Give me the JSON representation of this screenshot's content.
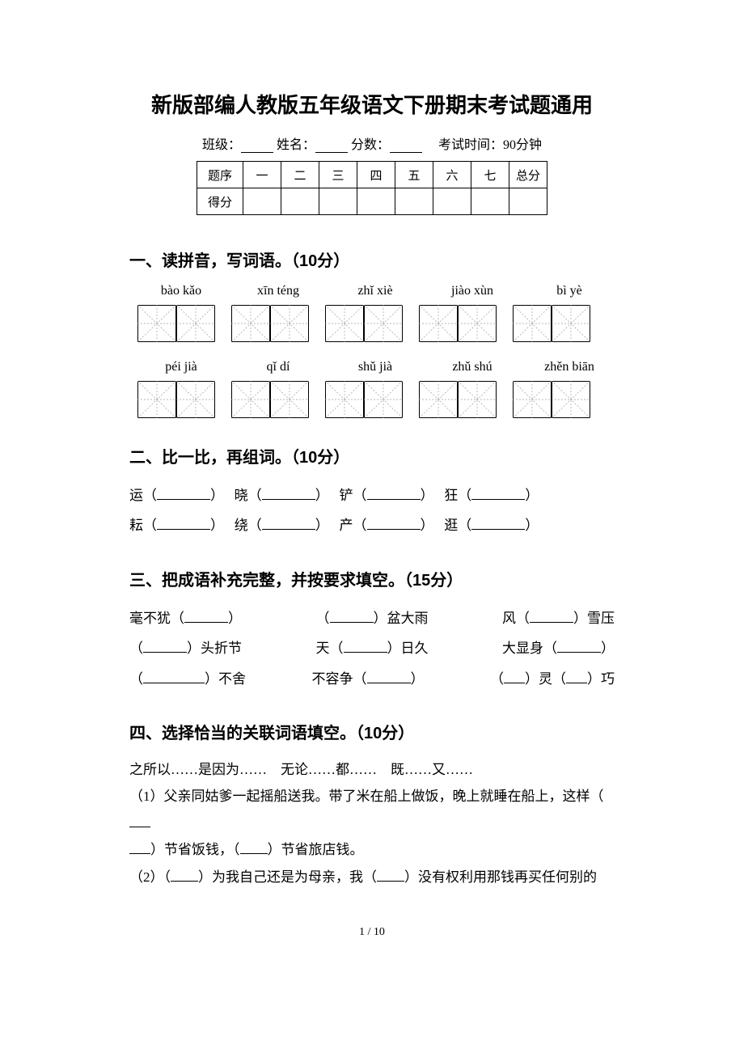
{
  "title": "新版部编人教版五年级语文下册期末考试题通用",
  "meta": {
    "class_label": "班级：",
    "name_label": "姓名：",
    "score_label": "分数：",
    "time_label": "考试时间：90分钟"
  },
  "score_table": {
    "row1": [
      "题序",
      "一",
      "二",
      "三",
      "四",
      "五",
      "六",
      "七",
      "总分"
    ],
    "row2_label": "得分"
  },
  "section1": {
    "heading": "一、读拼音，写词语。（10分）",
    "pinyin1": [
      "bào kǎo",
      "xīn téng",
      "zhǐ xiè",
      "jiào xùn",
      "bì yè"
    ],
    "pinyin2": [
      "péi jià",
      "qǐ dí",
      "shǔ jià",
      "zhǔ shú",
      "zhěn biān"
    ]
  },
  "section2": {
    "heading": "二、比一比，再组词。（10分）",
    "pairs_row1": [
      [
        "运",
        "晓",
        "铲",
        "狂"
      ]
    ],
    "pairs_row2": [
      [
        "耘",
        "绕",
        "产",
        "逛"
      ]
    ]
  },
  "section3": {
    "heading": "三、把成语补充完整，并按要求填空。（15分）",
    "rows": [
      [
        {
          "pre": "毫不犹（",
          "post": "）"
        },
        {
          "pre": "（",
          "post": "）盆大雨"
        },
        {
          "pre": "风（",
          "post": "）雪压"
        }
      ],
      [
        {
          "pre": "（",
          "post": "）头折节"
        },
        {
          "pre": "天（",
          "post": "）日久"
        },
        {
          "pre": "大显身（",
          "post": "）"
        }
      ],
      [
        {
          "pre": "（",
          "post": "）不舍"
        },
        {
          "pre": "不容争（",
          "post": "）"
        },
        {
          "pre": "（",
          "mid": "）灵（",
          "post": "）巧"
        }
      ]
    ]
  },
  "section4": {
    "heading": "四、选择恰当的关联词语填空。（10分）",
    "options": "之所以……是因为……　无论……都……　既……又……",
    "q1a": "（1）父亲同姑爹一起摇船送我。带了米在船上做饭，晚上就睡在船上，这样（",
    "q1b": "）节省饭钱，（",
    "q1c": "）节省旅店钱。",
    "q2a": "（2）（",
    "q2b": "）为我自己还是为母亲，我（",
    "q2c": "）没有权利用那钱再买任何别的"
  },
  "footer": "1 / 10",
  "colors": {
    "text": "#000000",
    "background": "#ffffff",
    "grid_dash": "#9aa0a6"
  }
}
